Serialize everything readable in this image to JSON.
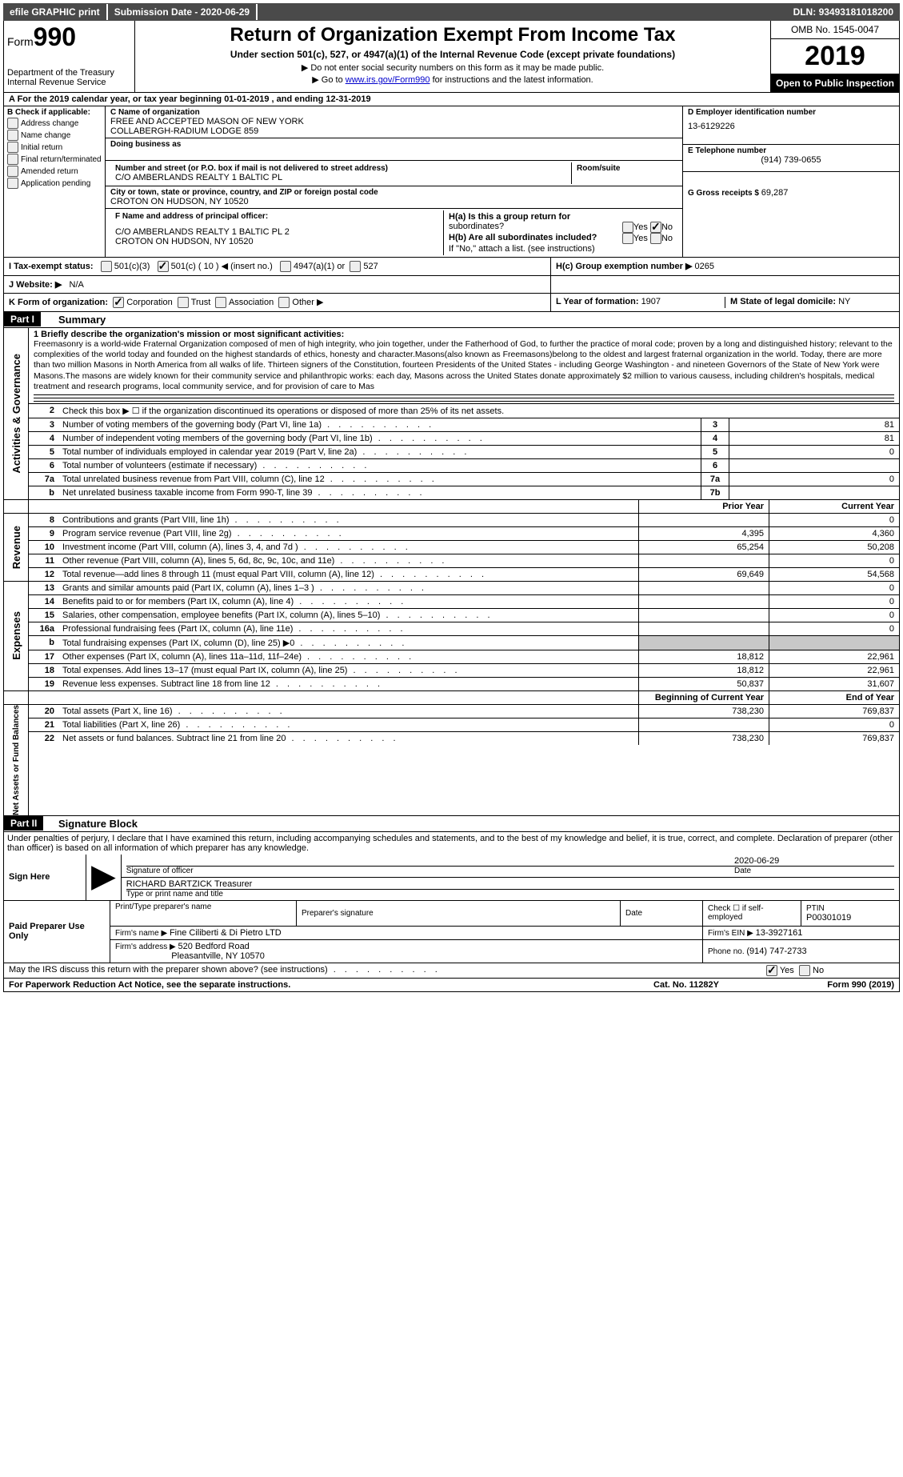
{
  "topbar": {
    "efile": "efile GRAPHIC print",
    "sub_label": "Submission Date - ",
    "sub_date": "2020-06-29",
    "dln_label": "DLN: ",
    "dln": "93493181018200"
  },
  "header": {
    "form_prefix": "Form",
    "form_number": "990",
    "dept1": "Department of the Treasury",
    "dept2": "Internal Revenue Service",
    "title": "Return of Organization Exempt From Income Tax",
    "subtitle": "Under section 501(c), 527, or 4947(a)(1) of the Internal Revenue Code (except private foundations)",
    "note1": "▶ Do not enter social security numbers on this form as it may be made public.",
    "note2_pre": "▶ Go to ",
    "note2_link": "www.irs.gov/Form990",
    "note2_post": " for instructions and the latest information.",
    "omb": "OMB No. 1545-0047",
    "year": "2019",
    "open": "Open to Public Inspection"
  },
  "rowA": "A   For the 2019 calendar year, or tax year beginning 01-01-2019      , and ending 12-31-2019",
  "sectionB": {
    "B_label": "B Check if applicable:",
    "checks": [
      "Address change",
      "Name change",
      "Initial return",
      "Final return/terminated",
      "Amended return",
      "Application pending"
    ],
    "C_label": "C Name of organization",
    "C_line1": "FREE AND ACCEPTED MASON OF NEW YORK",
    "C_line2": "COLLABERGH-RADIUM LODGE 859",
    "dba_label": "Doing business as",
    "addr_label": "Number and street (or P.O. box if mail is not delivered to street address)",
    "addr_val": "C/O AMBERLANDS REALTY 1 BALTIC PL",
    "room_label": "Room/suite",
    "city_label": "City or town, state or province, country, and ZIP or foreign postal code",
    "city_val": "CROTON ON HUDSON, NY   10520",
    "D_label": "D Employer identification number",
    "D_val": "13-6129226",
    "E_label": "E Telephone number",
    "E_val": "(914) 739-0655",
    "G_label": "G Gross receipts $ ",
    "G_val": "69,287",
    "F_label": "F  Name and address of principal officer:",
    "F_line1": "C/O AMBERLANDS REALTY 1 BALTIC PL 2",
    "F_line2": "CROTON ON HUDSON, NY   10520",
    "Ha_label": "H(a)   Is this a group return for",
    "Ha_sub": "subordinates?",
    "Hb_label": "H(b)   Are all subordinates included?",
    "Hb_note": "If \"No,\" attach a list. (see instructions)",
    "Hc_label": "H(c)   Group exemption number ▶  ",
    "Hc_val": "0265",
    "yes": "Yes",
    "no": "No"
  },
  "rowI": {
    "label": "I    Tax-exempt status:",
    "opt1": "501(c)(3)",
    "opt2a": "501(c) ( 10 )",
    "opt2b": "◀ (insert no.)",
    "opt3": "4947(a)(1) or",
    "opt4": "527"
  },
  "rowJ": {
    "label": "J   Website: ▶",
    "val": "N/A"
  },
  "rowK": {
    "label": "K Form of organization:",
    "opts": [
      "Corporation",
      "Trust",
      "Association",
      "Other ▶"
    ],
    "L_label": "L Year of formation: ",
    "L_val": "1907",
    "M_label": "M State of legal domicile: ",
    "M_val": "NY"
  },
  "part1": {
    "badge": "Part I",
    "title": "Summary",
    "q1_label": "1   Briefly describe the organization's mission or most significant activities:",
    "q1_text": "Freemasonry is a world-wide Fraternal Organization composed of men of high integrity, who join together, under the Fatherhood of God, to further the practice of moral code; proven by a long and distinguished history; relevant to the complexities of the world today and founded on the highest standards of ethics, honesty and character.Masons(also known as Freemasons)belong to the oldest and largest fraternal organization in the world. Today, there are more than two million Masons in North America from all walks of life. Thirteen signers of the Constitution, fourteen Presidents of the United States - including George Washington - and nineteen Governors of the State of New York were Masons.The masons are widely known for their community service and philanthropic works: each day, Masons across the United States donate approximately $2 million to various causess, including children's hospitals, medical treatment and research programs, local community service, and for provision of care to Mas",
    "q2": "Check this box ▶ ☐  if the organization discontinued its operations or disposed of more than 25% of its net assets.",
    "lines_box": [
      {
        "n": "3",
        "t": "Number of voting members of the governing body (Part VI, line 1a)",
        "b": "3",
        "v": "81"
      },
      {
        "n": "4",
        "t": "Number of independent voting members of the governing body (Part VI, line 1b)",
        "b": "4",
        "v": "81"
      },
      {
        "n": "5",
        "t": "Total number of individuals employed in calendar year 2019 (Part V, line 2a)",
        "b": "5",
        "v": "0"
      },
      {
        "n": "6",
        "t": "Total number of volunteers (estimate if necessary)",
        "b": "6",
        "v": ""
      },
      {
        "n": "7a",
        "t": "Total unrelated business revenue from Part VIII, column (C), line 12",
        "b": "7a",
        "v": "0"
      },
      {
        "n": "b",
        "t": "Net unrelated business taxable income from Form 990-T, line 39",
        "b": "7b",
        "v": ""
      }
    ],
    "prior_hdr": "Prior Year",
    "current_hdr": "Current Year",
    "vert_gov": "Activities & Governance",
    "vert_rev": "Revenue",
    "vert_exp": "Expenses",
    "vert_net": "Net Assets or Fund Balances",
    "revenue": [
      {
        "n": "8",
        "t": "Contributions and grants (Part VIII, line 1h)",
        "pv": "",
        "cv": "0"
      },
      {
        "n": "9",
        "t": "Program service revenue (Part VIII, line 2g)",
        "pv": "4,395",
        "cv": "4,360"
      },
      {
        "n": "10",
        "t": "Investment income (Part VIII, column (A), lines 3, 4, and 7d )",
        "pv": "65,254",
        "cv": "50,208"
      },
      {
        "n": "11",
        "t": "Other revenue (Part VIII, column (A), lines 5, 6d, 8c, 9c, 10c, and 11e)",
        "pv": "",
        "cv": "0"
      },
      {
        "n": "12",
        "t": "Total revenue—add lines 8 through 11 (must equal Part VIII, column (A), line 12)",
        "pv": "69,649",
        "cv": "54,568"
      }
    ],
    "expenses": [
      {
        "n": "13",
        "t": "Grants and similar amounts paid (Part IX, column (A), lines 1–3 )",
        "pv": "",
        "cv": "0"
      },
      {
        "n": "14",
        "t": "Benefits paid to or for members (Part IX, column (A), line 4)",
        "pv": "",
        "cv": "0"
      },
      {
        "n": "15",
        "t": "Salaries, other compensation, employee benefits (Part IX, column (A), lines 5–10)",
        "pv": "",
        "cv": "0"
      },
      {
        "n": "16a",
        "t": "Professional fundraising fees (Part IX, column (A), line 11e)",
        "pv": "",
        "cv": "0"
      },
      {
        "n": "b",
        "t": "Total fundraising expenses (Part IX, column (D), line 25) ▶0",
        "pv": "__SHADE__",
        "cv": "__SHADE__"
      },
      {
        "n": "17",
        "t": "Other expenses (Part IX, column (A), lines 11a–11d, 11f–24e)",
        "pv": "18,812",
        "cv": "22,961"
      },
      {
        "n": "18",
        "t": "Total expenses. Add lines 13–17 (must equal Part IX, column (A), line 25)",
        "pv": "18,812",
        "cv": "22,961"
      },
      {
        "n": "19",
        "t": "Revenue less expenses. Subtract line 18 from line 12",
        "pv": "50,837",
        "cv": "31,607"
      }
    ],
    "boy_hdr": "Beginning of Current Year",
    "eoy_hdr": "End of Year",
    "net": [
      {
        "n": "20",
        "t": "Total assets (Part X, line 16)",
        "pv": "738,230",
        "cv": "769,837"
      },
      {
        "n": "21",
        "t": "Total liabilities (Part X, line 26)",
        "pv": "",
        "cv": "0"
      },
      {
        "n": "22",
        "t": "Net assets or fund balances. Subtract line 21 from line 20",
        "pv": "738,230",
        "cv": "769,837"
      }
    ]
  },
  "part2": {
    "badge": "Part II",
    "title": "Signature Block",
    "declaration": "Under penalties of perjury, I declare that I have examined this return, including accompanying schedules and statements, and to the best of my knowledge and belief, it is true, correct, and complete. Declaration of preparer (other than officer) is based on all information of which preparer has any knowledge.",
    "sign_here": "Sign Here",
    "sig_officer": "Signature of officer",
    "date_label": "Date",
    "date_val": "2020-06-29",
    "name_title": "RICHARD BARTZICK Treasurer",
    "name_label": "Type or print name and title",
    "paid": "Paid Preparer Use Only",
    "col_print": "Print/Type preparer's name",
    "col_sig": "Preparer's signature",
    "col_date": "Date",
    "col_check": "Check ☐ if self-employed",
    "col_ptin": "PTIN",
    "ptin": "P00301019",
    "firm_name_label": "Firm's name     ▶ ",
    "firm_name": "Fine Ciliberti & Di Pietro LTD",
    "firm_ein_label": "Firm's EIN ▶ ",
    "firm_ein": "13-3927161",
    "firm_addr_label": "Firm's address ▶ ",
    "firm_addr1": "520 Bedford Road",
    "firm_addr2": "Pleasantville, NY   10570",
    "phone_label": "Phone no. ",
    "phone": "(914) 747-2733",
    "discuss": "May the IRS discuss this return with the preparer shown above? (see instructions)",
    "yes": "Yes",
    "no": "No"
  },
  "footer": {
    "left": "For Paperwork Reduction Act Notice, see the separate instructions.",
    "mid": "Cat. No. 11282Y",
    "right": "Form 990 (2019)"
  }
}
